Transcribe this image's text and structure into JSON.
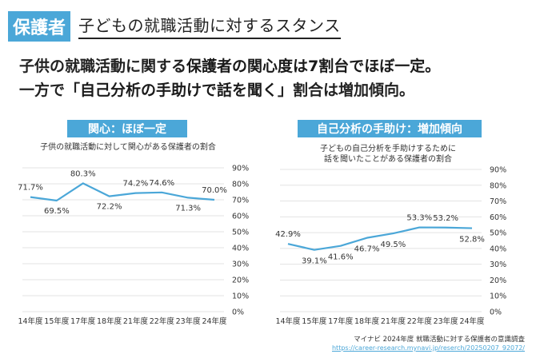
{
  "header": {
    "tag": "保護者",
    "title": "子どもの就職活動に対するスタンス"
  },
  "lead": {
    "line1": {
      "a": "子供の就職活動に関する",
      "b": "保護者の関心度は7割台でほぼ一定。"
    },
    "line2": {
      "a": "一方で「",
      "b": "自己分析の手助けで話を聞く",
      "c": "」割合は増加傾向。"
    }
  },
  "panels": [
    {
      "title": "関心：ほぼ一定",
      "subtitle_lines": [
        "子供の就職活動に対して関心がある保護者の割合"
      ]
    },
    {
      "title": "自己分析の手助け：増加傾向",
      "subtitle_lines": [
        "子どもの自己分析を手助けするために",
        "話を聞いたことがある保護者の割合"
      ]
    }
  ],
  "chart_data": [
    {
      "type": "line",
      "categories": [
        "14年度",
        "15年度",
        "17年度",
        "18年度",
        "21年度",
        "22年度",
        "23年度",
        "24年度"
      ],
      "values": [
        71.7,
        69.5,
        80.3,
        72.2,
        74.2,
        74.6,
        71.3,
        70.0
      ],
      "labels": [
        "71.7%",
        "69.5%",
        "80.3%",
        "72.2%",
        "74.2%",
        "74.6%",
        "71.3%",
        "70.0%"
      ],
      "ylim": [
        0,
        90
      ],
      "yticks": [
        "0%",
        "10%",
        "20%",
        "30%",
        "40%",
        "50%",
        "60%",
        "70%",
        "80%",
        "90%"
      ],
      "color": "#4ba7d8",
      "grid": true
    },
    {
      "type": "line",
      "categories": [
        "14年度",
        "15年度",
        "17年度",
        "18年度",
        "21年度",
        "22年度",
        "23年度",
        "24年度"
      ],
      "values": [
        42.9,
        39.1,
        41.6,
        46.7,
        49.5,
        53.3,
        53.2,
        52.8
      ],
      "labels": [
        "42.9%",
        "39.1%",
        "41.6%",
        "46.7%",
        "49.5%",
        "53.3%",
        "53.2%",
        "52.8%"
      ],
      "ylim": [
        0,
        90
      ],
      "yticks": [
        "0%",
        "10%",
        "20%",
        "30%",
        "40%",
        "50%",
        "60%",
        "70%",
        "80%",
        "90%"
      ],
      "color": "#4ba7d8",
      "grid": true
    }
  ],
  "footer": {
    "source": "マイナビ 2024年度 就職活動に対する保護者の意識調査",
    "url": "https://career-research.mynavi.jp/reserch/20250207_92072/"
  }
}
